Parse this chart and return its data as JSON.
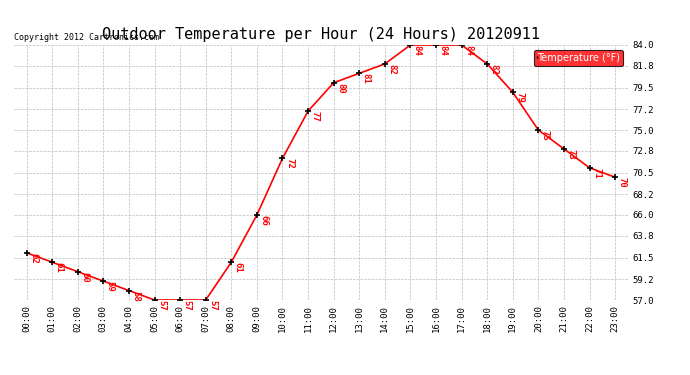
{
  "title": "Outdoor Temperature per Hour (24 Hours) 20120911",
  "copyright": "Copyright 2012 Cartronics.com",
  "legend_label": "Temperature (°F)",
  "hours": [
    "00:00",
    "01:00",
    "02:00",
    "03:00",
    "04:00",
    "05:00",
    "06:00",
    "07:00",
    "08:00",
    "09:00",
    "10:00",
    "11:00",
    "12:00",
    "13:00",
    "14:00",
    "15:00",
    "16:00",
    "17:00",
    "18:00",
    "19:00",
    "20:00",
    "21:00",
    "22:00",
    "23:00"
  ],
  "temps": [
    62,
    61,
    60,
    59,
    58,
    57,
    57,
    57,
    61,
    66,
    72,
    77,
    80,
    81,
    82,
    84,
    84,
    84,
    82,
    79,
    75,
    73,
    71,
    70
  ],
  "ylim": [
    57.0,
    84.0
  ],
  "yticks": [
    57.0,
    59.2,
    61.5,
    63.8,
    66.0,
    68.2,
    70.5,
    72.8,
    75.0,
    77.2,
    79.5,
    81.8,
    84.0
  ],
  "line_color": "red",
  "marker_color": "black",
  "grid_color": "#bbbbbb",
  "bg_color": "white",
  "title_fontsize": 11,
  "annotation_fontsize": 6.5,
  "legend_bg": "red",
  "legend_text_color": "white",
  "tick_fontsize": 6.5,
  "copyright_fontsize": 6
}
